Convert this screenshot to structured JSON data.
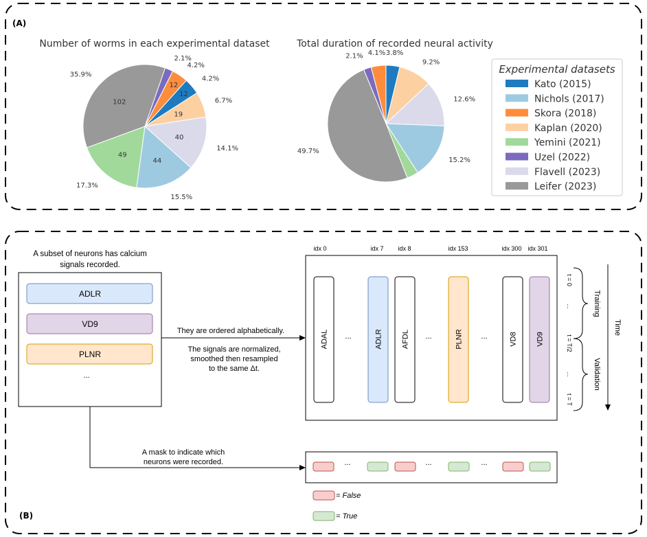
{
  "panel_a": {
    "label": "(A)",
    "legend_title": "Experimental datasets",
    "datasets": [
      {
        "name": "Kato (2015)",
        "color": "#1f7bbf"
      },
      {
        "name": "Nichols (2017)",
        "color": "#9ecae1"
      },
      {
        "name": "Skora (2018)",
        "color": "#fd8d3c"
      },
      {
        "name": "Kaplan (2020)",
        "color": "#fdd0a2"
      },
      {
        "name": "Yemini (2021)",
        "color": "#a1d99b"
      },
      {
        "name": "Uzel (2022)",
        "color": "#7b6bbd"
      },
      {
        "name": "Flavell (2023)",
        "color": "#dadaeb"
      },
      {
        "name": "Leifer (2023)",
        "color": "#999999"
      }
    ]
  },
  "chart_data": [
    {
      "type": "pie",
      "title": "Number of worms in each experimental dataset",
      "labels": [
        "Kato (2015)",
        "Nichols (2017)",
        "Skora (2018)",
        "Kaplan (2020)",
        "Yemini (2021)",
        "Uzel (2022)",
        "Flavell (2023)",
        "Leifer (2023)"
      ],
      "values": [
        12,
        44,
        12,
        19,
        49,
        6,
        40,
        102
      ],
      "percent_labels": [
        "4.2%",
        "15.5%",
        "4.2%",
        "6.7%",
        "17.3%",
        "2.1%",
        "14.1%",
        "35.9%"
      ],
      "inner_labels": [
        "12",
        "44",
        "12",
        "19",
        "49",
        "",
        "40",
        "102"
      ]
    },
    {
      "type": "pie",
      "title": "Total duration of recorded neural activity",
      "labels": [
        "Kato (2015)",
        "Nichols (2017)",
        "Skora (2018)",
        "Kaplan (2020)",
        "Yemini (2021)",
        "Uzel (2022)",
        "Flavell (2023)",
        "Leifer (2023)"
      ],
      "values": [
        3.8,
        15.2,
        4.1,
        9.2,
        3.2,
        2.1,
        12.6,
        49.7
      ],
      "percent_labels": [
        "3.8%",
        "15.2%",
        "4.1%",
        "9.2%",
        "",
        "2.1%",
        "12.6%",
        "49.7%"
      ]
    }
  ],
  "panel_b": {
    "label": "(B)",
    "subset_caption": [
      "A subset of neurons has calcium",
      "signals recorded."
    ],
    "subset_neurons": [
      {
        "name": "ADLR",
        "fill": "#dae8fc",
        "stroke": "#6c8ebf"
      },
      {
        "name": "VD9",
        "fill": "#e1d5e7",
        "stroke": "#9673a6"
      },
      {
        "name": "PLNR",
        "fill": "#ffe6cc",
        "stroke": "#d79b00"
      }
    ],
    "subset_more": "...",
    "arrow_text_1": "They are ordered alphabetically.",
    "arrow_text_2": [
      "The signals are normalized,",
      "smoothed then resampled",
      "to the same Δt."
    ],
    "mask_text": [
      "A mask to indicate which",
      "neurons were recorded."
    ],
    "index_labels": [
      "idx 0",
      "idx 7",
      "idx 8",
      "idx 153",
      "idx 300",
      "idx 301"
    ],
    "columns": [
      {
        "name": "ADAL",
        "fill": "#ffffff",
        "stroke": "#000000"
      },
      {
        "name": "ADLR",
        "fill": "#dae8fc",
        "stroke": "#6c8ebf"
      },
      {
        "name": "AFDL",
        "fill": "#ffffff",
        "stroke": "#000000"
      },
      {
        "name": "PLNR",
        "fill": "#ffe6cc",
        "stroke": "#d79b00"
      },
      {
        "name": "VD8",
        "fill": "#ffffff",
        "stroke": "#000000"
      },
      {
        "name": "VD9",
        "fill": "#e1d5e7",
        "stroke": "#9673a6"
      }
    ],
    "ellipsis": "...",
    "time_ticks": [
      "t = 0",
      "...",
      "t = T/2",
      "...",
      "t = T"
    ],
    "training_label": "Training",
    "validation_label": "Validation",
    "time_label": "Time",
    "mask_cells": [
      {
        "state": "False"
      },
      {
        "state": "True"
      },
      {
        "state": "False"
      },
      {
        "state": "True"
      },
      {
        "state": "False"
      },
      {
        "state": "True"
      }
    ],
    "mask_colors": {
      "False": {
        "fill": "#f8cecc",
        "stroke": "#b85450"
      },
      "True": {
        "fill": "#d5e8d4",
        "stroke": "#82b366"
      }
    },
    "key_false": "= False",
    "key_true": "= True"
  }
}
